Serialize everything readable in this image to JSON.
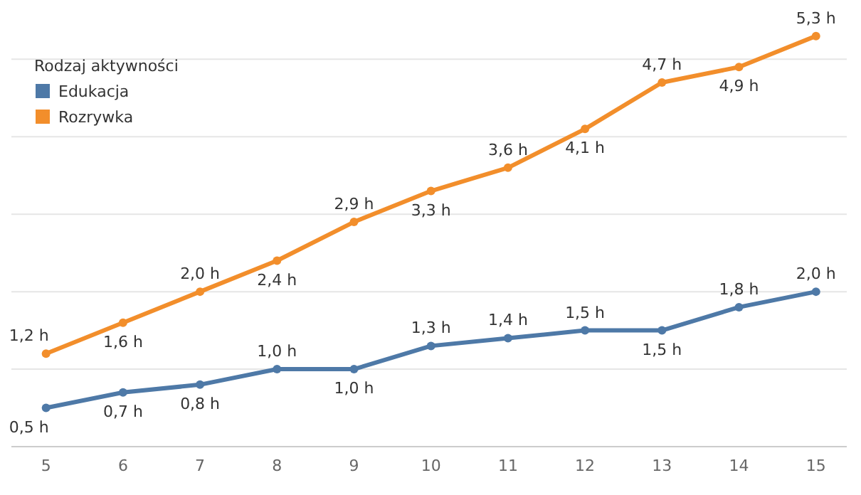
{
  "chart_data": {
    "type": "line",
    "legend_title": "Rodzaj aktywności",
    "x": [
      5,
      6,
      7,
      8,
      9,
      10,
      11,
      12,
      13,
      14,
      15
    ],
    "xlim": [
      4.55,
      15.4
    ],
    "xticks": [
      5,
      6,
      7,
      8,
      9,
      10,
      11,
      12,
      13,
      14,
      15
    ],
    "yticks": [
      {
        "value": 0,
        "label": null
      },
      {
        "value": 1,
        "label": null
      },
      {
        "value": 2,
        "label": null
      },
      {
        "value": 3,
        "label": null
      },
      {
        "value": 4,
        "label": null
      },
      {
        "value": 5,
        "label": null
      }
    ],
    "tick_labels": "x",
    "grid": "y",
    "legend": "top left",
    "marker": "circle",
    "line_style": "solid",
    "series": [
      {
        "name": "Edukacja",
        "color": "#4e79a7",
        "values": [
          0.5,
          0.7,
          0.8,
          1.0,
          1.0,
          1.3,
          1.4,
          1.5,
          1.5,
          1.8,
          2.0
        ],
        "value_labels": [
          "0,5 h",
          "0,7 h",
          "0,8 h",
          "1,0 h",
          "1,0 h",
          "1,3 h",
          "1,4 h",
          "1,5 h",
          "1,5 h",
          "1,8 h",
          "2,0 h"
        ]
      },
      {
        "name": "Rozrywka",
        "color": "#f28e2b",
        "values": [
          1.2,
          1.6,
          2.0,
          2.4,
          2.9,
          3.3,
          3.6,
          4.1,
          4.7,
          4.9,
          5.3
        ],
        "value_labels": [
          "1,2 h",
          "1,6 h",
          "2,0 h",
          "2,4 h",
          "2,9 h",
          "3,3 h",
          "3,6 h",
          "4,1 h",
          "4,7 h",
          "4,9 h",
          "5,3 h"
        ]
      }
    ]
  }
}
